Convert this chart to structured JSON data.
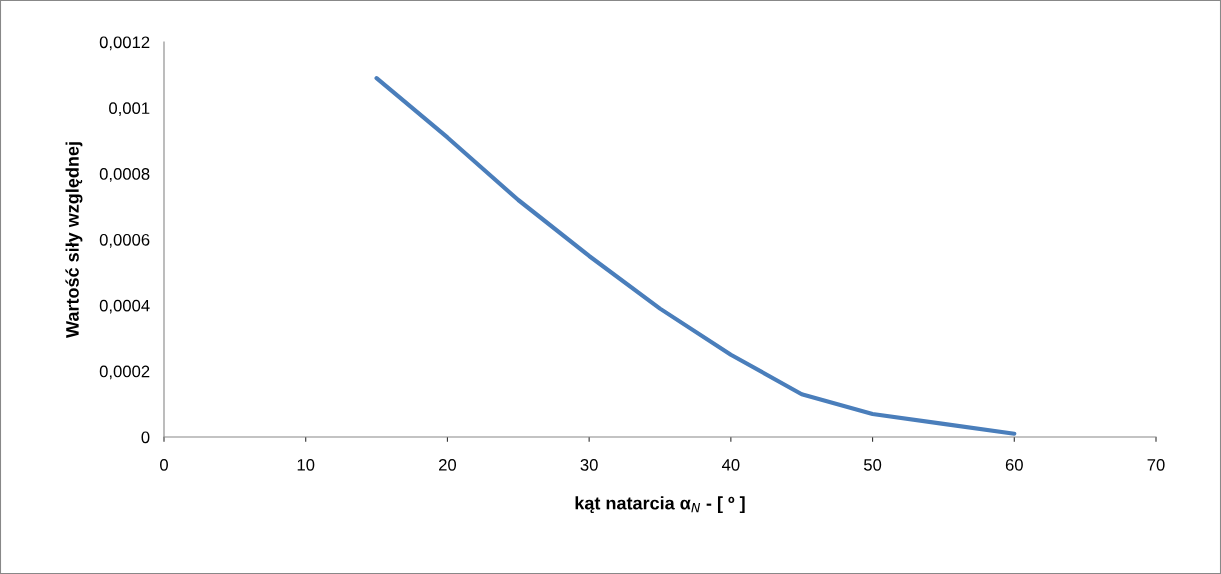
{
  "chart_data": {
    "type": "line",
    "xlabel": "kąt natarcia α$_{N}$ - [ º ]",
    "ylabel": "Wartość siły względnej",
    "x": [
      15,
      20,
      25,
      30,
      35,
      40,
      45,
      50,
      55,
      60
    ],
    "series": [
      {
        "color": "#4a7ebb",
        "values": [
          0.00109,
          0.00091,
          0.00072,
          0.00055,
          0.00039,
          0.00025,
          0.00013,
          7e-05,
          4e-05,
          1e-05
        ]
      }
    ],
    "xlim": [
      0,
      70
    ],
    "xticks": [
      0,
      10,
      20,
      30,
      40,
      50,
      60,
      70
    ],
    "ylim": [
      0,
      0.0012
    ],
    "yticks": [
      {
        "value": 0,
        "label": "0"
      },
      {
        "value": 0.0002,
        "label": "0,0002"
      },
      {
        "value": 0.0004,
        "label": "0,0004"
      },
      {
        "value": 0.0006,
        "label": "0,0006"
      },
      {
        "value": 0.0008,
        "label": "0,0008"
      },
      {
        "value": 0.001,
        "label": "0,001"
      },
      {
        "value": 0.0012,
        "label": "0,0012"
      }
    ],
    "marker": "none",
    "line_style": "solid"
  }
}
